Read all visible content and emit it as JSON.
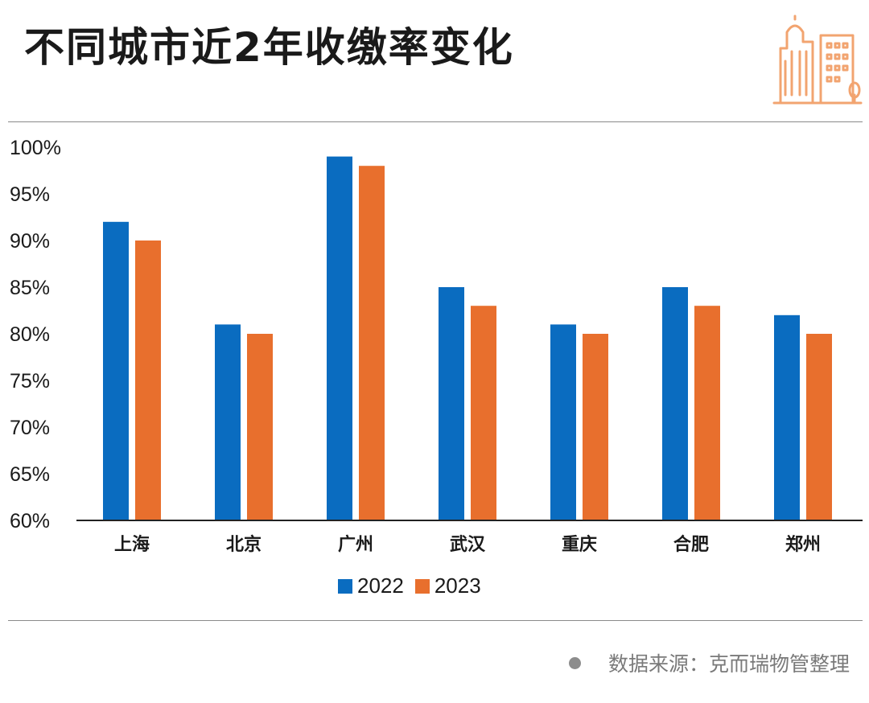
{
  "title": "不同城市近2年收缴率变化",
  "source": {
    "text": "数据来源：克而瑞物管整理"
  },
  "colors": {
    "series_2022": "#0a6cc0",
    "series_2023": "#e86f2d",
    "logo": "#f2a470",
    "axis": "#222222"
  },
  "logo_icon": "city-buildings-icon",
  "chart_data": {
    "type": "bar",
    "categories": [
      "上海",
      "北京",
      "广州",
      "武汉",
      "重庆",
      "合肥",
      "郑州"
    ],
    "series": [
      {
        "name": "2022",
        "values": [
          92,
          81,
          99,
          85,
          81,
          85,
          82
        ]
      },
      {
        "name": "2023",
        "values": [
          90,
          80,
          98,
          83,
          80,
          83,
          80
        ]
      }
    ],
    "ylim": [
      60,
      100
    ],
    "yticks": [
      "60%",
      "65%",
      "70%",
      "75%",
      "80%",
      "85%",
      "90%",
      "95%",
      "100%"
    ],
    "ytick_values": [
      60,
      65,
      70,
      75,
      80,
      85,
      90,
      95,
      100
    ],
    "unit": "%",
    "grid": false,
    "legend_position": "bottom-center",
    "xlabel": "",
    "ylabel": ""
  }
}
